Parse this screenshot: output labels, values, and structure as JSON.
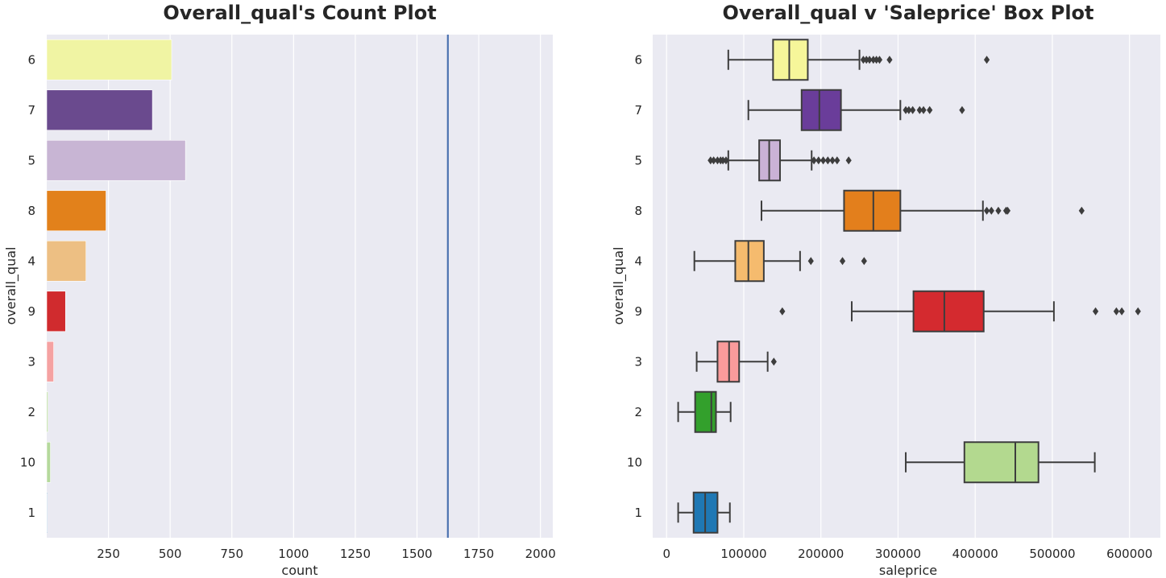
{
  "chart_data": [
    {
      "type": "bar",
      "orientation": "horizontal",
      "title": "Overall_qual's Count Plot",
      "xlabel": "count",
      "ylabel": "overall_qual",
      "categories": [
        "6",
        "7",
        "5",
        "8",
        "4",
        "9",
        "3",
        "2",
        "10",
        "1"
      ],
      "values": [
        506,
        428,
        562,
        240,
        159,
        76,
        28,
        5,
        15,
        2
      ],
      "colors": [
        "#f0f4a3",
        "#6a4a8e",
        "#c8b5d4",
        "#e2811b",
        "#edbf83",
        "#d02b2e",
        "#f5a2a2",
        "#b5d99c",
        "#b5d99c",
        "#2a7ab6"
      ],
      "reference_line": {
        "x": 1625,
        "color": "#4c72b0"
      },
      "xlim": [
        0,
        2050
      ],
      "xticks": [
        250,
        500,
        750,
        1000,
        1250,
        1500,
        1750,
        2000
      ],
      "grid": true,
      "background": "#eaeaf2"
    },
    {
      "type": "box",
      "orientation": "horizontal",
      "title": "Overall_qual v 'Saleprice' Box Plot",
      "xlabel": "saleprice",
      "ylabel": "overall_qual",
      "categories": [
        "6",
        "7",
        "5",
        "8",
        "4",
        "9",
        "3",
        "2",
        "10",
        "1"
      ],
      "boxes": [
        {
          "min": 80000,
          "q1": 138000,
          "median": 159000,
          "q3": 183000,
          "max": 250000,
          "outliers": [
            255000,
            259000,
            263000,
            268000,
            272000,
            276000,
            289000,
            415000
          ],
          "color": "#f6f69a"
        },
        {
          "min": 106000,
          "q1": 175000,
          "median": 198000,
          "q3": 226000,
          "max": 303000,
          "outliers": [
            310000,
            314000,
            319000,
            328000,
            333000,
            341000,
            383000
          ],
          "color": "#6a3d9a"
        },
        {
          "min": 80000,
          "q1": 120000,
          "median": 133000,
          "q3": 147000,
          "max": 188000,
          "outliers": [
            57000,
            61000,
            66000,
            70000,
            73000,
            77000,
            191000,
            197000,
            203000,
            209000,
            215000,
            221000,
            236000
          ],
          "color": "#cab2d6"
        },
        {
          "min": 123000,
          "q1": 230000,
          "median": 268000,
          "q3": 303000,
          "max": 410000,
          "outliers": [
            415000,
            421000,
            430000,
            440000,
            442000,
            538000
          ],
          "color": "#e37f1c"
        },
        {
          "min": 36000,
          "q1": 89000,
          "median": 106000,
          "q3": 126000,
          "max": 173000,
          "outliers": [
            187000,
            228000,
            256000
          ],
          "color": "#f5bb6e"
        },
        {
          "min": 240000,
          "q1": 320000,
          "median": 360000,
          "q3": 411000,
          "max": 502000,
          "outliers": [
            150000,
            556000,
            583000,
            590000,
            611000
          ],
          "color": "#d42a2f"
        },
        {
          "min": 39000,
          "q1": 66000,
          "median": 81000,
          "q3": 94000,
          "max": 131000,
          "outliers": [
            139000
          ],
          "color": "#fa9b9b"
        },
        {
          "min": 15000,
          "q1": 37000,
          "median": 58000,
          "q3": 64000,
          "max": 83000,
          "outliers": [],
          "color": "#33a02c"
        },
        {
          "min": 310000,
          "q1": 386000,
          "median": 452000,
          "q3": 482000,
          "max": 555000,
          "outliers": [],
          "color": "#b3d98f"
        },
        {
          "min": 15000,
          "q1": 35000,
          "median": 50000,
          "q3": 66000,
          "max": 82000,
          "outliers": [],
          "color": "#1f78b4"
        }
      ],
      "xlim": [
        -18000,
        640000
      ],
      "xticks": [
        0,
        100000,
        200000,
        300000,
        400000,
        500000,
        600000
      ],
      "grid": true,
      "background": "#eaeaf2"
    }
  ]
}
